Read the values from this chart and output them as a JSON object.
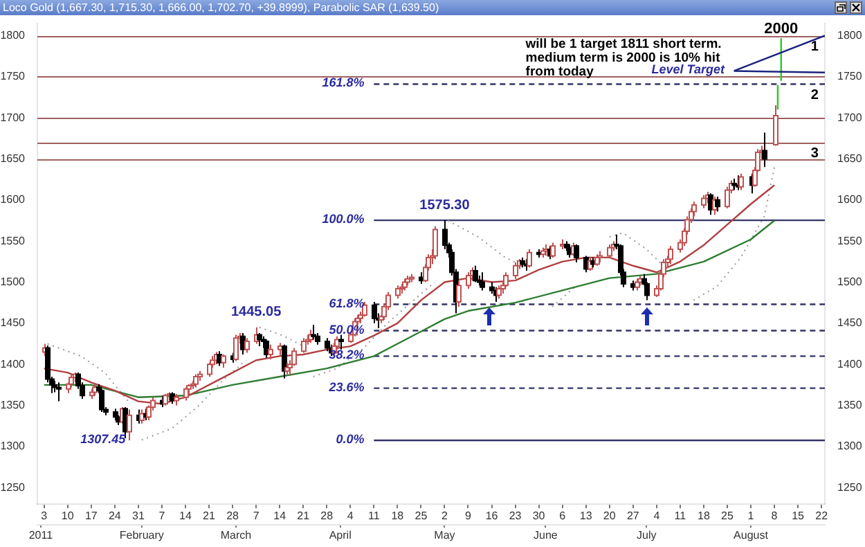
{
  "chart_data": {
    "type": "candlestick",
    "title": "Loco Gold (1,667.30, 1,715.30, 1,666.00, 1,702.70, +39.8999), Parabolic SAR (1,639.50)",
    "x": [
      "2011-01-03",
      "2011-01-04",
      "2011-01-05",
      "2011-01-06",
      "2011-01-07",
      "2011-01-10",
      "2011-01-11",
      "2011-01-12",
      "2011-01-13",
      "2011-01-14",
      "2011-01-17",
      "2011-01-18",
      "2011-01-19",
      "2011-01-20",
      "2011-01-21",
      "2011-01-24",
      "2011-01-25",
      "2011-01-26",
      "2011-01-27",
      "2011-01-28",
      "2011-01-31",
      "2011-02-01",
      "2011-02-02",
      "2011-02-03",
      "2011-02-04",
      "2011-02-07",
      "2011-02-08",
      "2011-02-09",
      "2011-02-10",
      "2011-02-11",
      "2011-02-14",
      "2011-02-15",
      "2011-02-16",
      "2011-02-17",
      "2011-02-18",
      "2011-02-21",
      "2011-02-22",
      "2011-02-23",
      "2011-02-24",
      "2011-02-25",
      "2011-02-28",
      "2011-03-01",
      "2011-03-02",
      "2011-03-03",
      "2011-03-04",
      "2011-03-07",
      "2011-03-08",
      "2011-03-09",
      "2011-03-10",
      "2011-03-11",
      "2011-03-14",
      "2011-03-15",
      "2011-03-16",
      "2011-03-17",
      "2011-03-18",
      "2011-03-21",
      "2011-03-22",
      "2011-03-23",
      "2011-03-24",
      "2011-03-25",
      "2011-03-28",
      "2011-03-29",
      "2011-03-30",
      "2011-03-31",
      "2011-04-01",
      "2011-04-04",
      "2011-04-05",
      "2011-04-06",
      "2011-04-07",
      "2011-04-08",
      "2011-04-11",
      "2011-04-12",
      "2011-04-13",
      "2011-04-14",
      "2011-04-15",
      "2011-04-18",
      "2011-04-19",
      "2011-04-20",
      "2011-04-21",
      "2011-04-22",
      "2011-04-25",
      "2011-04-26",
      "2011-04-27",
      "2011-04-28",
      "2011-04-29",
      "2011-05-02",
      "2011-05-03",
      "2011-05-04",
      "2011-05-05",
      "2011-05-06",
      "2011-05-09",
      "2011-05-10",
      "2011-05-11",
      "2011-05-12",
      "2011-05-13",
      "2011-05-16",
      "2011-05-17",
      "2011-05-18",
      "2011-05-19",
      "2011-05-20",
      "2011-05-23",
      "2011-05-24",
      "2011-05-25",
      "2011-05-26",
      "2011-05-27",
      "2011-05-30",
      "2011-05-31",
      "2011-06-01",
      "2011-06-02",
      "2011-06-03",
      "2011-06-06",
      "2011-06-07",
      "2011-06-08",
      "2011-06-09",
      "2011-06-10",
      "2011-06-13",
      "2011-06-14",
      "2011-06-15",
      "2011-06-16",
      "2011-06-17",
      "2011-06-20",
      "2011-06-21",
      "2011-06-22",
      "2011-06-23",
      "2011-06-24",
      "2011-06-27",
      "2011-06-28",
      "2011-06-29",
      "2011-06-30",
      "2011-07-01",
      "2011-07-04",
      "2011-07-05",
      "2011-07-06",
      "2011-07-07",
      "2011-07-08",
      "2011-07-11",
      "2011-07-12",
      "2011-07-13",
      "2011-07-14",
      "2011-07-15",
      "2011-07-18",
      "2011-07-19",
      "2011-07-20",
      "2011-07-21",
      "2011-07-22",
      "2011-07-25",
      "2011-07-26",
      "2011-07-27",
      "2011-07-28",
      "2011-07-29",
      "2011-08-01",
      "2011-08-02",
      "2011-08-03",
      "2011-08-04",
      "2011-08-05",
      "2011-08-08"
    ],
    "ohlc": [
      [
        1415,
        1425,
        1410,
        1420
      ],
      [
        1420,
        1423,
        1378,
        1382
      ],
      [
        1382,
        1385,
        1365,
        1375
      ],
      [
        1375,
        1380,
        1366,
        1372
      ],
      [
        1372,
        1378,
        1355,
        1370
      ],
      [
        1370,
        1378,
        1365,
        1376
      ],
      [
        1376,
        1387,
        1372,
        1384
      ],
      [
        1384,
        1390,
        1378,
        1388
      ],
      [
        1388,
        1390,
        1370,
        1374
      ],
      [
        1374,
        1378,
        1358,
        1362
      ],
      [
        1362,
        1370,
        1358,
        1366
      ],
      [
        1366,
        1376,
        1362,
        1372
      ],
      [
        1372,
        1376,
        1365,
        1368
      ],
      [
        1368,
        1370,
        1342,
        1345
      ],
      [
        1345,
        1348,
        1338,
        1342
      ],
      [
        1342,
        1346,
        1332,
        1336
      ],
      [
        1336,
        1338,
        1326,
        1330
      ],
      [
        1330,
        1348,
        1328,
        1346
      ],
      [
        1346,
        1348,
        1310,
        1318
      ],
      [
        1318,
        1345,
        1307.45,
        1338
      ],
      [
        1338,
        1345,
        1328,
        1332
      ],
      [
        1332,
        1345,
        1328,
        1340
      ],
      [
        1340,
        1346,
        1332,
        1336
      ],
      [
        1336,
        1350,
        1332,
        1348
      ],
      [
        1348,
        1360,
        1344,
        1356
      ],
      [
        1356,
        1362,
        1348,
        1352
      ],
      [
        1352,
        1364,
        1350,
        1362
      ],
      [
        1362,
        1366,
        1356,
        1364
      ],
      [
        1364,
        1366,
        1352,
        1356
      ],
      [
        1356,
        1364,
        1350,
        1360
      ],
      [
        1360,
        1372,
        1356,
        1370
      ],
      [
        1370,
        1376,
        1362,
        1374
      ],
      [
        1374,
        1380,
        1370,
        1376
      ],
      [
        1376,
        1388,
        1372,
        1385
      ],
      [
        1385,
        1392,
        1380,
        1388
      ],
      [
        1388,
        1402,
        1385,
        1400
      ],
      [
        1400,
        1410,
        1396,
        1405
      ],
      [
        1405,
        1415,
        1400,
        1412
      ],
      [
        1412,
        1416,
        1398,
        1402
      ],
      [
        1402,
        1412,
        1396,
        1410
      ],
      [
        1410,
        1414,
        1402,
        1406
      ],
      [
        1406,
        1436,
        1404,
        1432
      ],
      [
        1432,
        1438,
        1425,
        1434
      ],
      [
        1434,
        1438,
        1412,
        1418
      ],
      [
        1418,
        1432,
        1414,
        1428
      ],
      [
        1428,
        1445.05,
        1425,
        1436
      ],
      [
        1436,
        1438,
        1422,
        1430
      ],
      [
        1430,
        1434,
        1420,
        1428
      ],
      [
        1428,
        1430,
        1408,
        1412
      ],
      [
        1412,
        1424,
        1406,
        1418
      ],
      [
        1418,
        1426,
        1410,
        1422
      ],
      [
        1422,
        1424,
        1383,
        1392
      ],
      [
        1392,
        1402,
        1388,
        1396
      ],
      [
        1396,
        1405,
        1386,
        1400
      ],
      [
        1400,
        1420,
        1398,
        1416
      ],
      [
        1416,
        1432,
        1414,
        1428
      ],
      [
        1428,
        1436,
        1424,
        1430
      ],
      [
        1430,
        1442,
        1426,
        1436
      ],
      [
        1436,
        1448,
        1430,
        1434
      ],
      [
        1434,
        1438,
        1424,
        1428
      ],
      [
        1428,
        1432,
        1416,
        1420
      ],
      [
        1420,
        1424,
        1410,
        1414
      ],
      [
        1414,
        1426,
        1412,
        1422
      ],
      [
        1422,
        1434,
        1418,
        1430
      ],
      [
        1430,
        1436,
        1418,
        1428
      ],
      [
        1428,
        1440,
        1426,
        1436
      ],
      [
        1436,
        1456,
        1434,
        1452
      ],
      [
        1452,
        1460,
        1448,
        1456
      ],
      [
        1456,
        1464,
        1450,
        1460
      ],
      [
        1460,
        1476,
        1458,
        1472
      ],
      [
        1472,
        1476,
        1450,
        1456
      ],
      [
        1456,
        1462,
        1444,
        1454
      ],
      [
        1454,
        1460,
        1450,
        1458
      ],
      [
        1458,
        1474,
        1454,
        1470
      ],
      [
        1470,
        1488,
        1466,
        1484
      ],
      [
        1484,
        1496,
        1480,
        1492
      ],
      [
        1492,
        1498,
        1486,
        1494
      ],
      [
        1494,
        1504,
        1490,
        1500
      ],
      [
        1500,
        1508,
        1496,
        1504
      ],
      [
        1504,
        1510,
        1500,
        1506
      ],
      [
        1506,
        1512,
        1498,
        1502
      ],
      [
        1502,
        1522,
        1500,
        1518
      ],
      [
        1518,
        1534,
        1514,
        1530
      ],
      [
        1530,
        1540,
        1522,
        1532
      ],
      [
        1532,
        1568,
        1528,
        1564
      ],
      [
        1564,
        1575.3,
        1540,
        1545
      ],
      [
        1545,
        1548,
        1530,
        1536
      ],
      [
        1536,
        1540,
        1508,
        1512
      ],
      [
        1512,
        1516,
        1462,
        1476
      ],
      [
        1476,
        1502,
        1470,
        1496
      ],
      [
        1496,
        1512,
        1492,
        1508
      ],
      [
        1508,
        1518,
        1502,
        1514
      ],
      [
        1514,
        1520,
        1500,
        1502
      ],
      [
        1502,
        1508,
        1496,
        1500
      ],
      [
        1500,
        1512,
        1490,
        1494
      ],
      [
        1494,
        1500,
        1486,
        1490
      ],
      [
        1490,
        1494,
        1476,
        1484
      ],
      [
        1484,
        1496,
        1480,
        1492
      ],
      [
        1492,
        1500,
        1486,
        1496
      ],
      [
        1496,
        1512,
        1494,
        1508
      ],
      [
        1508,
        1524,
        1504,
        1520
      ],
      [
        1520,
        1528,
        1516,
        1526
      ],
      [
        1526,
        1530,
        1518,
        1522
      ],
      [
        1522,
        1528,
        1514,
        1520
      ],
      [
        1520,
        1540,
        1518,
        1536
      ],
      [
        1536,
        1540,
        1530,
        1534
      ],
      [
        1534,
        1542,
        1530,
        1538
      ],
      [
        1538,
        1546,
        1532,
        1540
      ],
      [
        1540,
        1544,
        1528,
        1532
      ],
      [
        1532,
        1548,
        1530,
        1544
      ],
      [
        1544,
        1552,
        1540,
        1546
      ],
      [
        1546,
        1550,
        1538,
        1542
      ],
      [
        1542,
        1546,
        1530,
        1534
      ],
      [
        1534,
        1548,
        1532,
        1544
      ],
      [
        1544,
        1546,
        1524,
        1530
      ],
      [
        1530,
        1532,
        1512,
        1516
      ],
      [
        1516,
        1530,
        1514,
        1526
      ],
      [
        1526,
        1530,
        1518,
        1522
      ],
      [
        1522,
        1534,
        1520,
        1530
      ],
      [
        1530,
        1538,
        1524,
        1532
      ],
      [
        1532,
        1546,
        1530,
        1542
      ],
      [
        1542,
        1550,
        1538,
        1546
      ],
      [
        1546,
        1558,
        1540,
        1544
      ],
      [
        1544,
        1546,
        1508,
        1512
      ],
      [
        1512,
        1516,
        1494,
        1498
      ],
      [
        1498,
        1502,
        1490,
        1494
      ],
      [
        1494,
        1504,
        1490,
        1500
      ],
      [
        1500,
        1508,
        1496,
        1504
      ],
      [
        1504,
        1510,
        1496,
        1498
      ],
      [
        1498,
        1500,
        1478,
        1484
      ],
      [
        1484,
        1496,
        1482,
        1492
      ],
      [
        1492,
        1514,
        1490,
        1510
      ],
      [
        1510,
        1528,
        1506,
        1524
      ],
      [
        1524,
        1532,
        1518,
        1528
      ],
      [
        1528,
        1544,
        1522,
        1540
      ],
      [
        1540,
        1552,
        1536,
        1548
      ],
      [
        1548,
        1566,
        1544,
        1562
      ],
      [
        1562,
        1580,
        1558,
        1576
      ],
      [
        1576,
        1590,
        1572,
        1586
      ],
      [
        1586,
        1598,
        1580,
        1594
      ],
      [
        1594,
        1606,
        1590,
        1602
      ],
      [
        1602,
        1610,
        1596,
        1606
      ],
      [
        1606,
        1608,
        1582,
        1588
      ],
      [
        1588,
        1604,
        1582,
        1600
      ],
      [
        1600,
        1604,
        1586,
        1592
      ],
      [
        1592,
        1616,
        1590,
        1612
      ],
      [
        1612,
        1624,
        1608,
        1620
      ],
      [
        1620,
        1626,
        1612,
        1618
      ],
      [
        1618,
        1630,
        1612,
        1616
      ],
      [
        1616,
        1632,
        1612,
        1628
      ],
      [
        1628,
        1632,
        1608,
        1618
      ],
      [
        1618,
        1640,
        1616,
        1636
      ],
      [
        1636,
        1662,
        1634,
        1658
      ],
      [
        1658,
        1666,
        1650,
        1660
      ],
      [
        1660,
        1682,
        1640,
        1650
      ],
      [
        1667.3,
        1715.3,
        1666,
        1702.7
      ]
    ],
    "series": [
      {
        "type": "line",
        "color": "#b04040",
        "x": [
          "2011-01-03",
          "2011-01-10",
          "2011-01-17",
          "2011-01-24",
          "2011-01-31",
          "2011-02-07",
          "2011-02-14",
          "2011-02-21",
          "2011-02-28",
          "2011-03-07",
          "2011-03-14",
          "2011-03-21",
          "2011-03-28",
          "2011-04-04",
          "2011-04-11",
          "2011-04-18",
          "2011-04-25",
          "2011-05-02",
          "2011-05-09",
          "2011-05-16",
          "2011-05-23",
          "2011-05-30",
          "2011-06-06",
          "2011-06-13",
          "2011-06-20",
          "2011-06-27",
          "2011-07-04",
          "2011-07-11",
          "2011-07-18",
          "2011-07-25",
          "2011-08-01",
          "2011-08-08"
        ],
        "values": [
          1395,
          1390,
          1378,
          1368,
          1355,
          1352,
          1360,
          1375,
          1390,
          1405,
          1410,
          1412,
          1418,
          1422,
          1435,
          1450,
          1478,
          1500,
          1505,
          1500,
          1502,
          1515,
          1525,
          1530,
          1530,
          1520,
          1512,
          1525,
          1545,
          1570,
          1595,
          1618
        ]
      },
      {
        "type": "line",
        "color": "#2e7d32",
        "x": [
          "2011-01-03",
          "2011-01-17",
          "2011-01-31",
          "2011-02-14",
          "2011-02-28",
          "2011-03-14",
          "2011-03-28",
          "2011-04-11",
          "2011-04-25",
          "2011-05-02",
          "2011-05-09",
          "2011-05-23",
          "2011-06-06",
          "2011-06-20",
          "2011-07-04",
          "2011-07-18",
          "2011-08-01",
          "2011-08-08"
        ],
        "values": [
          1375,
          1375,
          1360,
          1362,
          1375,
          1385,
          1395,
          1410,
          1440,
          1455,
          1465,
          1475,
          1490,
          1505,
          1510,
          1525,
          1552,
          1575
        ]
      },
      {
        "type": "line",
        "color": "#9a9a9a",
        "line_style": "dotted",
        "x": [
          "2011-01-04",
          "2011-01-14",
          "2011-01-21",
          "2011-01-28",
          "2011-01-31",
          "2011-02-01",
          "2011-02-10",
          "2011-02-18",
          "2011-02-25",
          "2011-03-04",
          "2011-03-07",
          "2011-03-08",
          "2011-03-15",
          "2011-03-22",
          "2011-03-23",
          "2011-03-24",
          "2011-03-31",
          "2011-04-08",
          "2011-04-15",
          "2011-04-22",
          "2011-04-29",
          "2011-05-02",
          "2011-05-03",
          "2011-05-12",
          "2011-05-20",
          "2011-05-25",
          "2011-05-26",
          "2011-06-03",
          "2011-06-10",
          "2011-06-13",
          "2011-06-20",
          "2011-06-24",
          "2011-07-01",
          "2011-07-06",
          "2011-07-07",
          "2011-07-15",
          "2011-07-22",
          "2011-07-29",
          "2011-08-05",
          "2011-08-08"
        ],
        "values": [
          1425,
          1410,
          1390,
          1355,
          null,
          1308,
          1322,
          1350,
          1380,
          1405,
          null,
          1445,
          1435,
          1420,
          null,
          1385,
          1395,
          1420,
          1450,
          1475,
          1500,
          null,
          1575,
          1555,
          1530,
          1520,
          null,
          1470,
          1495,
          null,
          1555,
          1560,
          1540,
          1520,
          null,
          1478,
          1495,
          1530,
          1580,
          1640
        ]
      },
      {
        "type": "line",
        "color": "#1a237e",
        "x": [
          "2011-07-27",
          "2011-08-23"
        ],
        "values": [
          1757,
          1800
        ]
      },
      {
        "type": "line",
        "color": "#1a237e",
        "x": [
          "2011-07-27",
          "2011-08-23"
        ],
        "values": [
          1757,
          1755
        ]
      },
      {
        "type": "line",
        "color": "#22cc22",
        "x": [
          "2011-08-09",
          "2011-08-09"
        ],
        "values": [
          1710,
          1740
        ]
      },
      {
        "type": "line",
        "color": "#22cc22",
        "x": [
          "2011-08-10",
          "2011-08-10"
        ],
        "values": [
          1745,
          1797
        ]
      },
      {
        "type": "line",
        "color": "#333366",
        "line_style": "dashed",
        "x": [
          "2011-04-11",
          "2011-08-23"
        ],
        "values": [
          1741,
          1741
        ]
      },
      {
        "type": "line",
        "color": "#333366",
        "line_style": "solid",
        "x": [
          "2011-04-11",
          "2011-08-23"
        ],
        "values": [
          1575.3,
          1575.3
        ]
      },
      {
        "type": "line",
        "color": "#333366",
        "line_style": "dashed",
        "x": [
          "2011-04-11",
          "2011-08-23"
        ],
        "values": [
          1473,
          1473
        ]
      },
      {
        "type": "line",
        "color": "#333366",
        "line_style": "dashed",
        "x": [
          "2011-04-11",
          "2011-08-23"
        ],
        "values": [
          1441,
          1441
        ]
      },
      {
        "type": "line",
        "color": "#333366",
        "line_style": "dashed",
        "x": [
          "2011-04-11",
          "2011-08-23"
        ],
        "values": [
          1410,
          1410
        ]
      },
      {
        "type": "line",
        "color": "#333366",
        "line_style": "dashed",
        "x": [
          "2011-04-11",
          "2011-08-23"
        ],
        "values": [
          1371,
          1371
        ]
      },
      {
        "type": "line",
        "color": "#333366",
        "line_style": "solid",
        "x": [
          "2011-04-11",
          "2011-08-23"
        ],
        "values": [
          1307.45,
          1307.45
        ]
      }
    ],
    "xlim": [
      "2011-01-01",
      "2011-08-23"
    ],
    "xticks": [
      {
        "value": "2011-01-03",
        "label": "3"
      },
      {
        "value": "2011-01-10",
        "label": "10"
      },
      {
        "value": "2011-01-17",
        "label": "17"
      },
      {
        "value": "2011-01-24",
        "label": "24"
      },
      {
        "value": "2011-01-31",
        "label": "31"
      },
      {
        "value": "2011-02-07",
        "label": "7"
      },
      {
        "value": "2011-02-14",
        "label": "14"
      },
      {
        "value": "2011-02-21",
        "label": "21"
      },
      {
        "value": "2011-02-28",
        "label": "28"
      },
      {
        "value": "2011-03-07",
        "label": "7"
      },
      {
        "value": "2011-03-14",
        "label": "14"
      },
      {
        "value": "2011-03-21",
        "label": "21"
      },
      {
        "value": "2011-03-28",
        "label": "28"
      },
      {
        "value": "2011-04-04",
        "label": "4"
      },
      {
        "value": "2011-04-11",
        "label": "11"
      },
      {
        "value": "2011-04-18",
        "label": "18"
      },
      {
        "value": "2011-04-25",
        "label": "25"
      },
      {
        "value": "2011-05-02",
        "label": "2"
      },
      {
        "value": "2011-05-09",
        "label": "9"
      },
      {
        "value": "2011-05-16",
        "label": "16"
      },
      {
        "value": "2011-05-23",
        "label": "23"
      },
      {
        "value": "2011-05-30",
        "label": "30"
      },
      {
        "value": "2011-06-06",
        "label": "6"
      },
      {
        "value": "2011-06-13",
        "label": "13"
      },
      {
        "value": "2011-06-20",
        "label": "20"
      },
      {
        "value": "2011-06-27",
        "label": "27"
      },
      {
        "value": "2011-07-04",
        "label": "4"
      },
      {
        "value": "2011-07-11",
        "label": "11"
      },
      {
        "value": "2011-07-18",
        "label": "18"
      },
      {
        "value": "2011-07-25",
        "label": "25"
      },
      {
        "value": "2011-08-01",
        "label": "1"
      },
      {
        "value": "2011-08-08",
        "label": "8"
      },
      {
        "value": "2011-08-15",
        "label": "15"
      },
      {
        "value": "2011-08-22",
        "label": "22"
      }
    ],
    "x2lim": [
      "2011-01-01",
      "2011-08-23"
    ],
    "x2ticks": [
      {
        "value": "2011-01-02",
        "label": "2011"
      },
      {
        "value": "2011-02-01",
        "label": "February"
      },
      {
        "value": "2011-03-01",
        "label": "March"
      },
      {
        "value": "2011-04-01",
        "label": "April"
      },
      {
        "value": "2011-05-02",
        "label": "May"
      },
      {
        "value": "2011-06-01",
        "label": "June"
      },
      {
        "value": "2011-07-01",
        "label": "July"
      },
      {
        "value": "2011-08-01",
        "label": "August"
      }
    ],
    "ylim": [
      1230,
      1815
    ],
    "yticks": [
      1250,
      1300,
      1350,
      1400,
      1450,
      1500,
      1550,
      1600,
      1650,
      1700,
      1750,
      1800
    ],
    "y2lim": [
      1230,
      1815
    ],
    "y2ticks": [
      1250,
      1300,
      1350,
      1400,
      1450,
      1500,
      1550,
      1600,
      1650,
      1700,
      1750,
      1800
    ],
    "ref_lines": [
      {
        "axis": "y",
        "value": 1800,
        "color": "#a06060"
      },
      {
        "axis": "y",
        "value": 1750,
        "color": "#a06060"
      },
      {
        "axis": "y",
        "value": 1700,
        "color": "#a06060"
      },
      {
        "axis": "y",
        "value": 1670,
        "color": "#a06060"
      },
      {
        "axis": "y",
        "value": 1650,
        "color": "#a06060"
      }
    ],
    "annotations": [
      "will be 1 target 1811 short term.\nmedium term is 2000 is 10% hit\nfrom today",
      {
        "text": "2000",
        "x": "2011-08-10",
        "y": 1797
      },
      {
        "text": "Level Target",
        "x": "2011-07-25",
        "y": 1757
      },
      {
        "text": "161.8%",
        "x": "2011-04-09",
        "y": 1741
      },
      {
        "text": "100.0%",
        "x": "2011-04-09",
        "y": 1575.3
      },
      {
        "text": "61.8%",
        "x": "2011-04-09",
        "y": 1473
      },
      {
        "text": "50.0%",
        "x": "2011-04-09",
        "y": 1441
      },
      {
        "text": "38.2%",
        "x": "2011-04-09",
        "y": 1410
      },
      {
        "text": "23.6%",
        "x": "2011-04-09",
        "y": 1371
      },
      {
        "text": "0.0%",
        "x": "2011-04-09",
        "y": 1307.45
      },
      {
        "text": "1575.30",
        "x": "2011-05-02",
        "y": 1575.3
      },
      {
        "text": "1445.05",
        "x": "2011-03-07",
        "y": 1445.05
      },
      {
        "text": "1307.45",
        "x": "2011-01-28",
        "y": 1307.45
      },
      {
        "text": "1",
        "x": "2011-08-20",
        "y": 1800
      },
      {
        "text": "2",
        "x": "2011-08-20",
        "y": 1741
      },
      {
        "text": "3",
        "x": "2011-08-20",
        "y": 1670
      }
    ]
  }
}
